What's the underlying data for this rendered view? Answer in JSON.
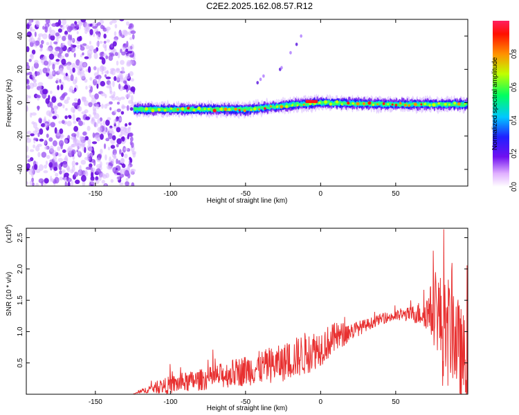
{
  "title": "C2E2.2025.162.08.57.R12",
  "chart_data": [
    {
      "type": "heatmap",
      "xlabel": "Height of straight line (km)",
      "ylabel": "Frequency (Hz)",
      "xlim": [
        -196,
        98
      ],
      "ylim": [
        -50,
        50
      ],
      "x_ticks": [
        -150,
        -100,
        -50,
        0,
        50
      ],
      "y_ticks": [
        -40,
        -20,
        0,
        20,
        40
      ],
      "colorbar": {
        "label": "Normalized spectral amplitude",
        "range": [
          0,
          1
        ],
        "ticks": [
          0.0,
          0.2,
          0.4,
          0.6,
          0.8
        ],
        "colors": [
          "#ffffff",
          "#a020f0",
          "#2020ff",
          "#00d0ff",
          "#00ff60",
          "#c0ff00",
          "#ff8000",
          "#ff0000"
        ]
      },
      "features": {
        "noise_region_x": [
          -196,
          -124
        ],
        "signal_band": {
          "x": [
            -124,
            98
          ],
          "center_freq": [
            -4,
            -4,
            -1,
            0,
            -1,
            -1
          ],
          "center_x": [
            -124,
            -50,
            -15,
            0,
            50,
            98
          ]
        },
        "peak_x": [
          -10,
          -2
        ]
      }
    },
    {
      "type": "line",
      "xlabel": "Height of straight line (km)",
      "ylabel": "SNR (10 * v/v)",
      "y_multiplier": "(x10",
      "y_multiplier_exp": "4",
      "xlim": [
        -196,
        98
      ],
      "ylim": [
        0,
        26500
      ],
      "x_ticks": [
        -150,
        -100,
        -50,
        0,
        50
      ],
      "y_ticks": [
        "0.5",
        "1.0",
        "1.5",
        "2.0",
        "2.5"
      ],
      "y_tick_values": [
        5000,
        10000,
        15000,
        20000,
        25000
      ],
      "series_color": "#e83030",
      "envelope": {
        "x": [
          -196,
          -125,
          -115,
          -100,
          -75,
          -50,
          -25,
          -10,
          0,
          10,
          20,
          30,
          40,
          50,
          60,
          70,
          78,
          82,
          88,
          92,
          98
        ],
        "y": [
          0,
          0,
          800,
          1500,
          2500,
          3800,
          5000,
          6500,
          7500,
          9000,
          10000,
          11000,
          12000,
          12500,
          12800,
          13000,
          13500,
          9000,
          11000,
          7000,
          4000
        ],
        "amp": [
          0,
          0,
          600,
          1500,
          1800,
          2500,
          3000,
          3500,
          3000,
          2500,
          1500,
          1000,
          800,
          900,
          1200,
          2500,
          7000,
          9000,
          9000,
          8000,
          7000
        ]
      }
    }
  ]
}
